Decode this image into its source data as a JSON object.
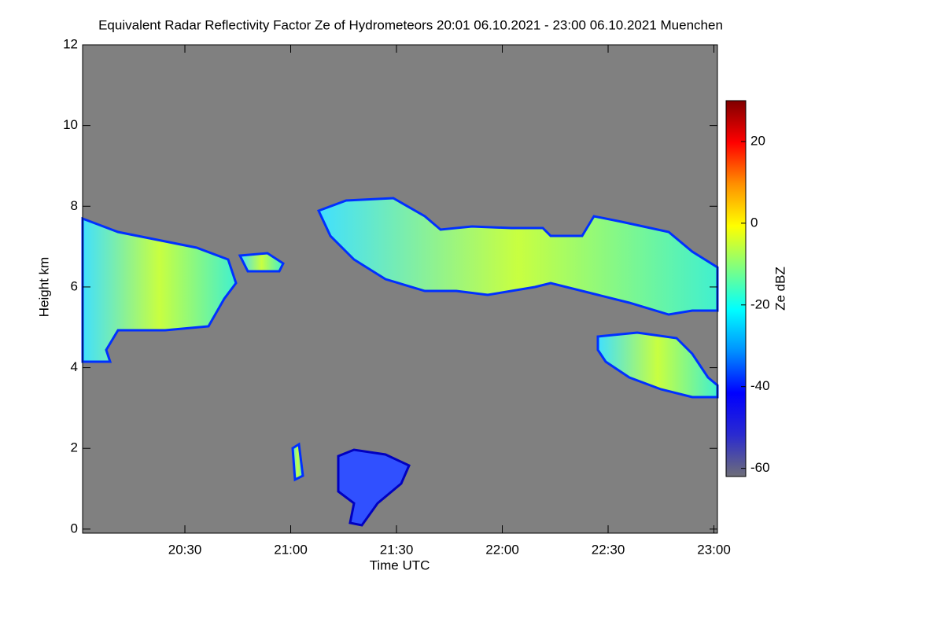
{
  "chart_data": {
    "type": "heatmap",
    "title": "Equivalent Radar Reflectivity Factor Ze of Hydrometeors   20:01 06.10.2021 - 23:00 06.10.2021 Muenchen",
    "x_label": "Time UTC",
    "y_label": "Height km",
    "colorbar_label": "Ze dBZ",
    "background": "#808080",
    "xlim": [
      1201,
      1381
    ],
    "xticks": [
      {
        "value": 1230,
        "label": "20:30"
      },
      {
        "value": 1260,
        "label": "21:00"
      },
      {
        "value": 1290,
        "label": "21:30"
      },
      {
        "value": 1320,
        "label": "22:00"
      },
      {
        "value": 1350,
        "label": "22:30"
      },
      {
        "value": 1380,
        "label": "23:00"
      }
    ],
    "ylim": [
      -0.1,
      12
    ],
    "yticks": [
      0,
      2,
      4,
      6,
      8,
      10,
      12
    ],
    "clim": [
      -62,
      30
    ],
    "cticks": [
      -60,
      -40,
      -20,
      0,
      20
    ],
    "colormap": [
      "#6e6e78",
      "#2a2ad0",
      "#0000ff",
      "#0090ff",
      "#00ffff",
      "#80ff80",
      "#ffff00",
      "#ff9000",
      "#ff0000",
      "#800000"
    ]
  }
}
